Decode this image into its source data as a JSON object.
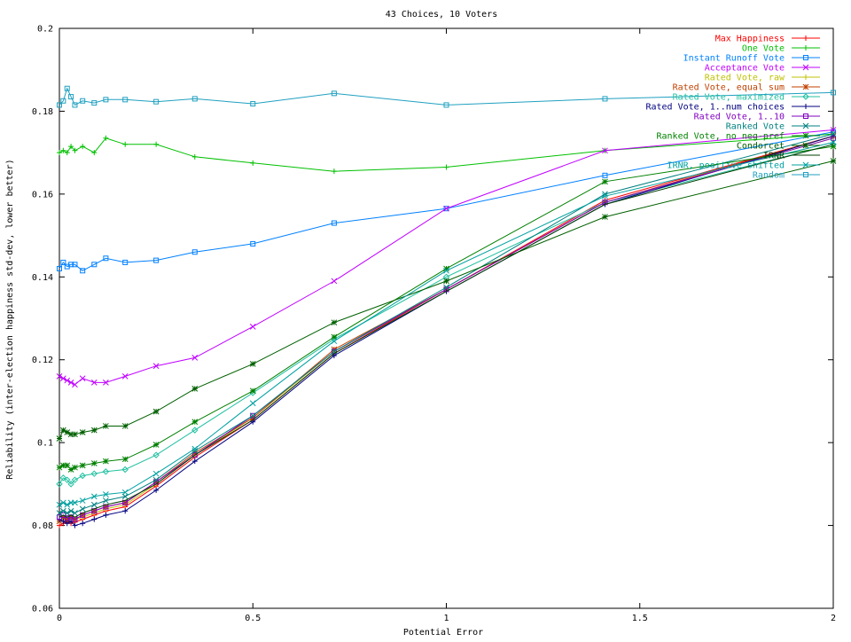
{
  "chart_data": {
    "type": "line",
    "title": "43 Choices, 10 Voters",
    "xlabel": "Potential Error",
    "ylabel": "Reliability (inter-election happiness std-dev, lower better)",
    "xlim": [
      0,
      2
    ],
    "ylim": [
      0.06,
      0.2
    ],
    "xticks": [
      0,
      0.5,
      1,
      1.5,
      2
    ],
    "xtick_labels": [
      "0",
      "0.5",
      "1",
      "1.5",
      "2"
    ],
    "yticks": [
      0.06,
      0.08,
      0.1,
      0.12,
      0.14,
      0.16,
      0.18,
      0.2
    ],
    "ytick_labels": [
      "0.06",
      "0.08",
      "0.1",
      "0.12",
      "0.14",
      "0.16",
      "0.18",
      "0.2"
    ],
    "grid": false,
    "legend_position": "top-right",
    "x": [
      0,
      0.01,
      0.02,
      0.03,
      0.04,
      0.06,
      0.09,
      0.12,
      0.17,
      0.25,
      0.35,
      0.5,
      0.71,
      1.0,
      1.41,
      2.0
    ],
    "series": [
      {
        "name": "Max Happiness",
        "color": "#ff0000",
        "marker": "plus",
        "values": [
          0.08,
          0.0805,
          0.081,
          0.0805,
          0.0808,
          0.0815,
          0.0825,
          0.0835,
          0.0845,
          0.0895,
          0.0965,
          0.1055,
          0.1215,
          0.137,
          0.1585,
          0.174
        ]
      },
      {
        "name": "One Vote",
        "color": "#00c000",
        "marker": "plus",
        "values": [
          0.17,
          0.1705,
          0.17,
          0.1715,
          0.1705,
          0.1715,
          0.17,
          0.1735,
          0.172,
          0.172,
          0.169,
          0.1675,
          0.1655,
          0.1665,
          0.1705,
          0.1745
        ]
      },
      {
        "name": "Instant Runoff Vote",
        "color": "#0080ff",
        "marker": "square",
        "values": [
          0.142,
          0.1435,
          0.1425,
          0.143,
          0.143,
          0.1415,
          0.143,
          0.1445,
          0.1435,
          0.144,
          0.146,
          0.148,
          0.153,
          0.1565,
          0.1645,
          0.175
        ]
      },
      {
        "name": "Acceptance Vote",
        "color": "#c000ff",
        "marker": "x",
        "values": [
          0.116,
          0.1155,
          0.115,
          0.1145,
          0.114,
          0.1155,
          0.1145,
          0.1145,
          0.116,
          0.1185,
          0.1205,
          0.128,
          0.139,
          0.1565,
          0.1705,
          0.1755
        ]
      },
      {
        "name": "Rated Vote, raw",
        "color": "#c0c000",
        "marker": "plus",
        "values": [
          0.081,
          0.0815,
          0.0812,
          0.0818,
          0.0815,
          0.082,
          0.083,
          0.084,
          0.085,
          0.09,
          0.097,
          0.106,
          0.122,
          0.137,
          0.158,
          0.1735
        ]
      },
      {
        "name": "Rated Vote, equal sum",
        "color": "#c04000",
        "marker": "star",
        "values": [
          0.081,
          0.082,
          0.0815,
          0.082,
          0.0815,
          0.0825,
          0.0835,
          0.0845,
          0.0855,
          0.0905,
          0.0975,
          0.106,
          0.1225,
          0.137,
          0.158,
          0.174
        ]
      },
      {
        "name": "Rated Vote, maximized",
        "color": "#20c0a0",
        "marker": "diamond",
        "values": [
          0.09,
          0.0915,
          0.091,
          0.09,
          0.091,
          0.092,
          0.0925,
          0.093,
          0.0935,
          0.097,
          0.103,
          0.112,
          0.125,
          0.14,
          0.158,
          0.172
        ]
      },
      {
        "name": "Rated Vote, 1..num choices",
        "color": "#000080",
        "marker": "plus",
        "values": [
          0.0815,
          0.081,
          0.0805,
          0.081,
          0.08,
          0.0805,
          0.0815,
          0.0825,
          0.0835,
          0.0885,
          0.0955,
          0.105,
          0.121,
          0.1365,
          0.1575,
          0.174
        ]
      },
      {
        "name": "Rated Vote, 1..10",
        "color": "#8000c0",
        "marker": "square",
        "values": [
          0.082,
          0.0825,
          0.0818,
          0.082,
          0.0815,
          0.0825,
          0.0835,
          0.0845,
          0.0855,
          0.0905,
          0.097,
          0.1065,
          0.122,
          0.137,
          0.158,
          0.1735
        ]
      },
      {
        "name": "Ranked Vote",
        "color": "#008080",
        "marker": "x",
        "values": [
          0.083,
          0.0835,
          0.083,
          0.0835,
          0.083,
          0.084,
          0.085,
          0.086,
          0.087,
          0.091,
          0.098,
          0.1065,
          0.122,
          0.1375,
          0.16,
          0.1745
        ]
      },
      {
        "name": "Ranked Vote, no neg-pref",
        "color": "#008000",
        "marker": "star",
        "values": [
          0.094,
          0.0945,
          0.0945,
          0.0935,
          0.094,
          0.0945,
          0.095,
          0.0955,
          0.096,
          0.0995,
          0.105,
          0.1125,
          0.1255,
          0.142,
          0.163,
          0.1715
        ]
      },
      {
        "name": "Condorcet",
        "color": "#006000",
        "marker": "star",
        "values": [
          0.101,
          0.103,
          0.1025,
          0.102,
          0.102,
          0.1025,
          0.103,
          0.104,
          0.104,
          0.1075,
          0.113,
          0.119,
          0.129,
          0.139,
          0.1545,
          0.168
        ]
      },
      {
        "name": "IRNR",
        "color": "#004000",
        "marker": "none",
        "values": [
          0.082,
          0.0825,
          0.082,
          0.0825,
          0.082,
          0.083,
          0.084,
          0.085,
          0.086,
          0.09,
          0.097,
          0.1055,
          0.1215,
          0.1365,
          0.1575,
          0.172
        ]
      },
      {
        "name": "IRNR, positive shifted",
        "color": "#00a0a0",
        "marker": "x",
        "values": [
          0.085,
          0.0855,
          0.085,
          0.0855,
          0.0855,
          0.086,
          0.087,
          0.0875,
          0.088,
          0.0925,
          0.0985,
          0.1095,
          0.1245,
          0.1415,
          0.1595,
          0.1725
        ]
      },
      {
        "name": "Random",
        "color": "#20a0c0",
        "marker": "square",
        "values": [
          0.1815,
          0.1825,
          0.1855,
          0.1835,
          0.1815,
          0.1825,
          0.182,
          0.1828,
          0.1828,
          0.1823,
          0.183,
          0.1818,
          0.1843,
          0.1815,
          0.183,
          0.1845
        ]
      }
    ]
  }
}
